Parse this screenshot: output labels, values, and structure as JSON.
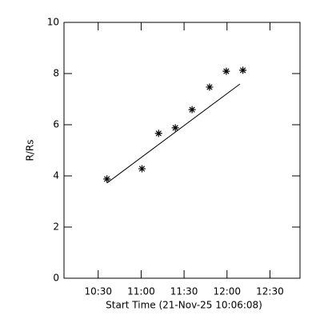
{
  "chart_data": {
    "type": "scatter",
    "x_label": "Start Time (21-Nov-25 10:06:08)",
    "y_label": "R/Rs",
    "x": [
      636.1,
      660.6,
      672.2,
      683.9,
      695.6,
      707.8,
      719.5,
      731.1
    ],
    "values": [
      3.88,
      4.28,
      5.66,
      5.88,
      6.59,
      7.47,
      8.09,
      8.13
    ],
    "fit": {
      "x": [
        636.1,
        729.0
      ],
      "values": [
        3.72,
        7.59
      ]
    },
    "color": "#000000",
    "xlim": [
      606.1,
      771
    ],
    "xticks": [
      {
        "value": 630,
        "label": "10:30"
      },
      {
        "value": 660,
        "label": "11:00"
      },
      {
        "value": 690,
        "label": "11:30"
      },
      {
        "value": 720,
        "label": "12:00"
      },
      {
        "value": 750,
        "label": "12:30"
      }
    ],
    "ylim": [
      0,
      10
    ],
    "yticks": [
      0,
      2,
      4,
      6,
      8,
      10
    ]
  }
}
